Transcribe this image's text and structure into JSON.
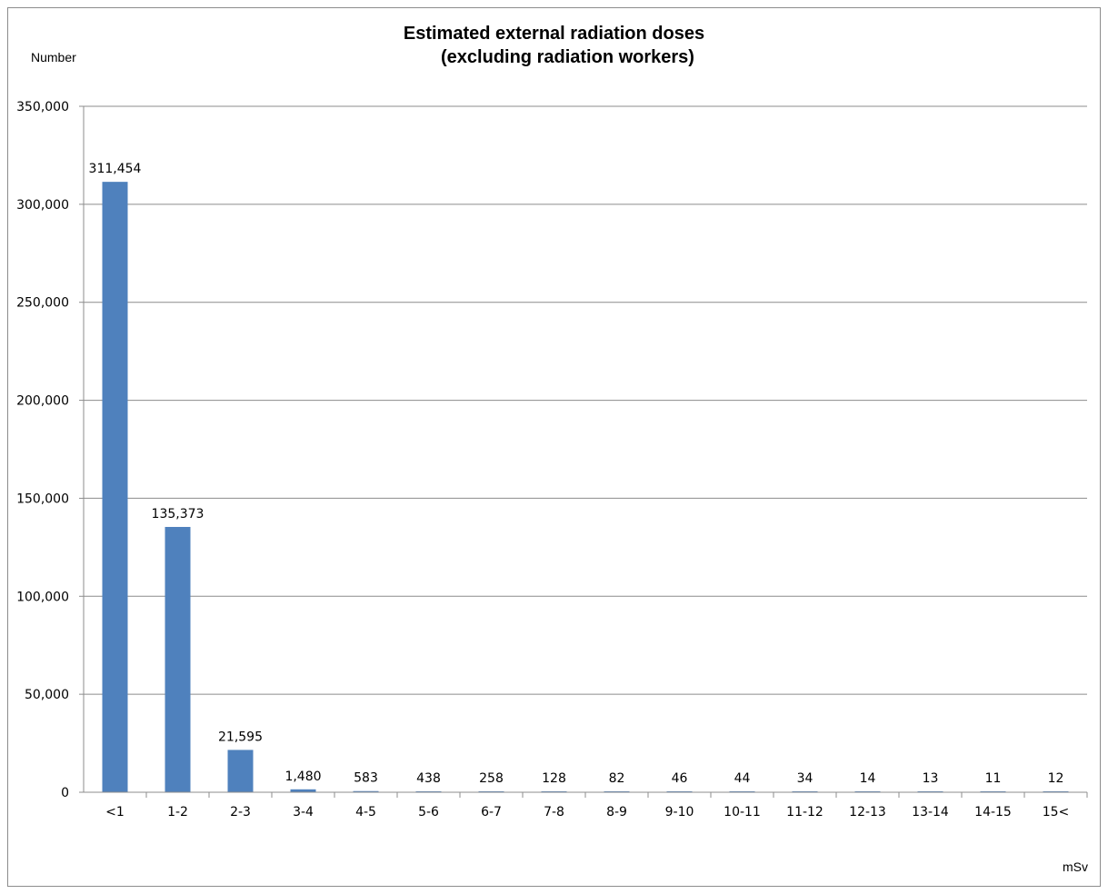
{
  "chart_data": {
    "type": "bar",
    "title_line1": "Estimated external radiation doses",
    "title_line2": "(excluding radiation workers)",
    "ylabel": "Number",
    "xlabel": "mSv",
    "categories": [
      "<1",
      "1-2",
      "2-3",
      "3-4",
      "4-5",
      "5-6",
      "6-7",
      "7-8",
      "8-9",
      "9-10",
      "10-11",
      "11-12",
      "12-13",
      "13-14",
      "14-15",
      "15<"
    ],
    "values": [
      311454,
      135373,
      21595,
      1480,
      583,
      438,
      258,
      128,
      82,
      46,
      44,
      34,
      14,
      13,
      11,
      12
    ],
    "data_labels": [
      "311,454",
      "135,373",
      "21,595",
      "1,480",
      "583",
      "438",
      "258",
      "128",
      "82",
      "46",
      "44",
      "34",
      "14",
      "13",
      "11",
      "12"
    ],
    "ylim": [
      0,
      350000
    ],
    "yticks": [
      0,
      50000,
      100000,
      150000,
      200000,
      250000,
      300000,
      350000
    ],
    "ytick_labels": [
      "0",
      "50,000",
      "100,000",
      "150,000",
      "200,000",
      "250,000",
      "300,000",
      "350,000"
    ],
    "grid": true,
    "bar_color": "#4f81bd",
    "grid_color": "#8c8c8c"
  }
}
